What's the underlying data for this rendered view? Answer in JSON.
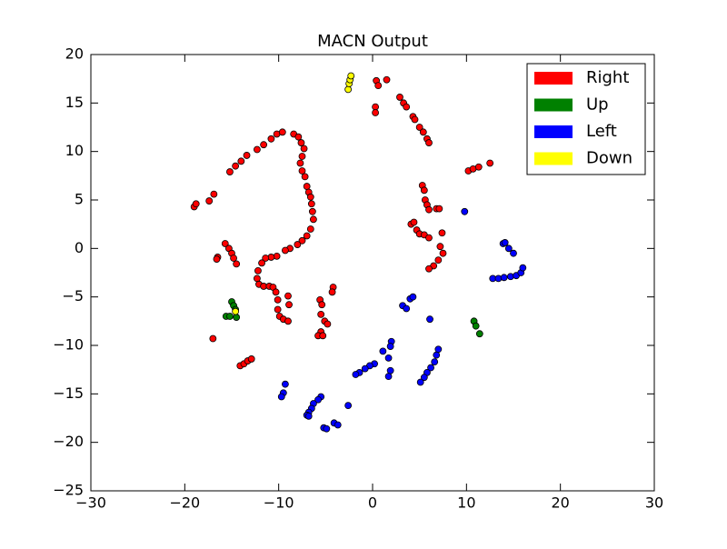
{
  "chart_data": {
    "type": "scatter",
    "title": "MACN Output",
    "xlim": [
      -30,
      30
    ],
    "ylim": [
      -25,
      20
    ],
    "xticks": [
      {
        "value": -30,
        "label": "−30"
      },
      {
        "value": -20,
        "label": "−20"
      },
      {
        "value": -10,
        "label": "−10"
      },
      0,
      10,
      20,
      30
    ],
    "yticks": [
      {
        "value": -25,
        "label": "−25"
      },
      {
        "value": -20,
        "label": "−20"
      },
      {
        "value": -15,
        "label": "−15"
      },
      {
        "value": -10,
        "label": "−10"
      },
      {
        "value": -5,
        "label": "−5"
      },
      0,
      5,
      10,
      15,
      20
    ],
    "grid": false,
    "legend": "upper right",
    "series": [
      {
        "name": "Right",
        "color": "#ff0000",
        "x": [
          0.4,
          0.6,
          1.5,
          0.3,
          0.3,
          2.9,
          3.3,
          3.6,
          4.3,
          4.5,
          5,
          5.4,
          5.8,
          6.0,
          10.2,
          10.7,
          11.3,
          12.5,
          5.3,
          5.5,
          5.6,
          5.8,
          6,
          6.8,
          7.1,
          4.1,
          4.4,
          4.7,
          5.0,
          5.5,
          6.0,
          7.4,
          7.2,
          7.5,
          7,
          6.5,
          6.0,
          -19,
          -18.8,
          -17.4,
          -16.9,
          -15.2,
          -14.6,
          -14,
          -13.4,
          -12.3,
          -11.6,
          -10.8,
          -10.2,
          -9.6,
          -8.4,
          -7.9,
          -7.6,
          -7.3,
          -7.5,
          -7.7,
          -7.5,
          -7.2,
          -7,
          -6.8,
          -6.6,
          -6.5,
          -6.4,
          -6.3,
          -6.6,
          -7,
          -7.5,
          -8.0,
          -8.8,
          -9.3,
          -10.2,
          -10.8,
          -11.4,
          -11.8,
          -12.2,
          -12.3,
          -12.1,
          -11.6,
          -11,
          -10.6,
          -10.3,
          -10.1,
          -10.1,
          -9.9,
          -9.5,
          -9.0,
          -8.9,
          -9.0,
          -15.7,
          -15.3,
          -15,
          -14.8,
          -14.5,
          -16.5,
          -16.6,
          -5.6,
          -5.4,
          -4.2,
          -4.3,
          -5.5,
          -5.1,
          -4.8,
          -5.5,
          -5.8,
          -5.3,
          -17,
          -14.1,
          -13.7,
          -13.3,
          -12.9
        ],
        "y": [
          17.3,
          16.8,
          17.4,
          14.6,
          14.0,
          15.6,
          15.0,
          14.6,
          13.6,
          13.3,
          12.5,
          12.0,
          11.3,
          10.9,
          8,
          8.2,
          8.4,
          8.8,
          6.5,
          6.0,
          5.0,
          4.5,
          4.0,
          4.1,
          4.1,
          2.5,
          2.7,
          1.9,
          1.5,
          1.4,
          1.1,
          1.6,
          0.2,
          -0.5,
          -1.2,
          -1.8,
          -2.1,
          4.3,
          4.6,
          4.9,
          5.6,
          7.9,
          8.5,
          9.0,
          9.6,
          10.2,
          10.7,
          11.3,
          11.8,
          12.0,
          11.8,
          11.5,
          10.9,
          10.3,
          9.5,
          8.8,
          8,
          7.4,
          6.4,
          5.8,
          5.3,
          4.6,
          3.8,
          3.0,
          2.0,
          1.3,
          0.8,
          0.4,
          0,
          -0.2,
          -0.8,
          -0.9,
          -1.0,
          -1.5,
          -2.3,
          -3.1,
          -3.7,
          -3.9,
          -3.9,
          -4.0,
          -4.5,
          -5.3,
          -6.3,
          -7.0,
          -7.3,
          -7.5,
          -5.8,
          -4.9,
          0.5,
          0,
          -0.5,
          -1.0,
          -1.6,
          -0.9,
          -1.1,
          -5.3,
          -5.8,
          -4.0,
          -4.5,
          -6.8,
          -7.5,
          -7.8,
          -8.6,
          -9.0,
          -9.0,
          -9.3,
          -12.1,
          -11.9,
          -11.6,
          -11.4
        ]
      },
      {
        "name": "Up",
        "color": "#008000",
        "x": [
          -15,
          -14.8,
          -14.6,
          -15.6,
          -15.2,
          -14.5,
          10.8,
          11,
          11.4
        ],
        "y": [
          -5.5,
          -5.9,
          -6.3,
          -7,
          -7,
          -7.1,
          -7.5,
          -8,
          -8.8
        ]
      },
      {
        "name": "Left",
        "color": "#0000ff",
        "x": [
          9.8,
          13.9,
          14.1,
          14.5,
          15,
          12.8,
          13.4,
          14,
          14.7,
          15.3,
          15.8,
          16,
          6.1,
          4,
          4.3,
          3.2,
          3.6,
          2,
          1.9,
          1.1,
          1.7,
          1.9,
          1.7,
          0.2,
          -0.3,
          -0.8,
          -1.4,
          -1.8,
          7,
          6.8,
          6.6,
          6.2,
          5.8,
          5.5,
          5.1,
          -9.3,
          -9.5,
          -9.7,
          -5.5,
          -5.8,
          -6.3,
          -6.5,
          -6.8,
          -7,
          -6.8,
          -2.6,
          -4.1,
          -3.7,
          -5.2,
          -4.9
        ],
        "y": [
          3.8,
          0.5,
          0.6,
          0,
          -0.5,
          -3.1,
          -3.1,
          -3,
          -2.9,
          -2.8,
          -2.5,
          -2,
          -7.3,
          -5.2,
          -5.0,
          -5.9,
          -6.2,
          -9.6,
          -10.1,
          -10.6,
          -11.3,
          -12.6,
          -13.2,
          -11.9,
          -12.1,
          -12.4,
          -12.8,
          -13,
          -10.4,
          -11,
          -11.7,
          -12.3,
          -12.8,
          -13.3,
          -13.8,
          -14,
          -14.9,
          -15.3,
          -15.3,
          -15.6,
          -16,
          -16.5,
          -16.9,
          -17.2,
          -17.3,
          -16.2,
          -18,
          -18.2,
          -18.5,
          -18.6
        ]
      },
      {
        "name": "Down",
        "color": "#ffff00",
        "x": [
          -2.6,
          -2.5,
          -2.4,
          -2.3,
          -14.6
        ],
        "y": [
          16.4,
          17.0,
          17.4,
          17.8,
          -6.5
        ]
      }
    ]
  }
}
